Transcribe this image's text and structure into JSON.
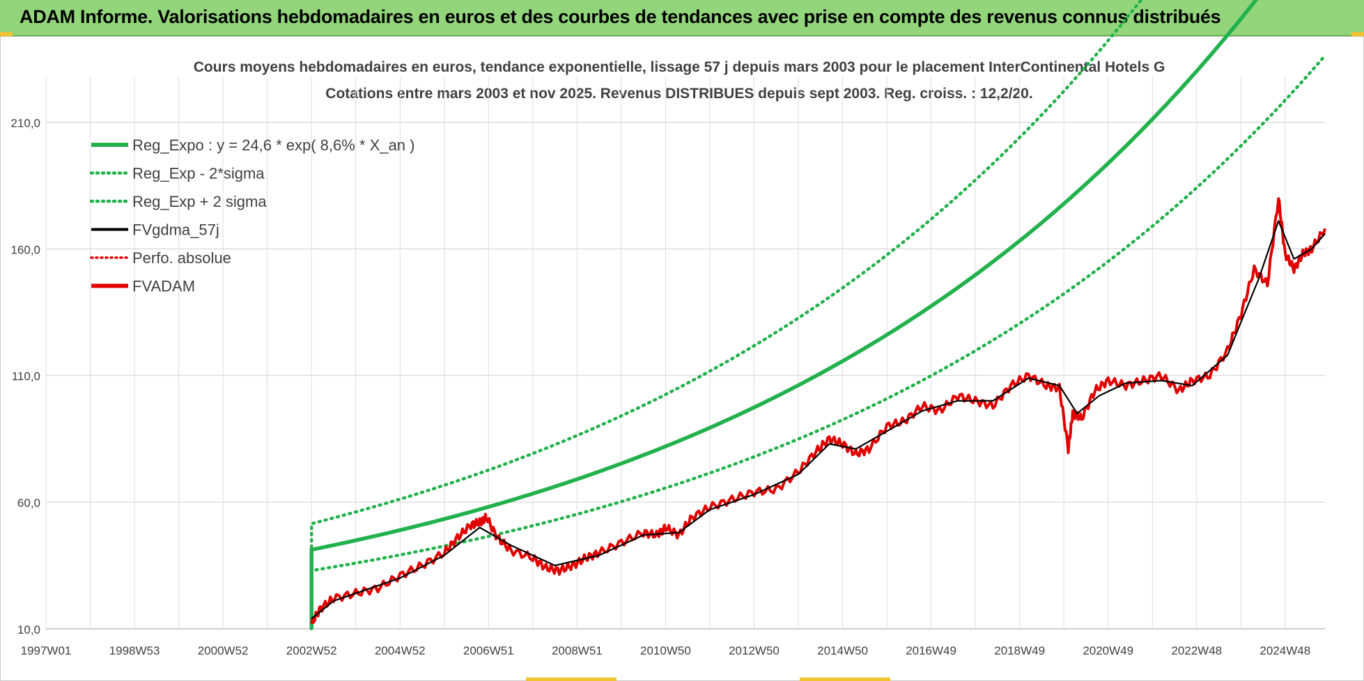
{
  "banner": {
    "title": "ADAM Informe. Valorisations hebdomadaires en euros et des courbes de tendances avec prise en compte des revenus connus distribués"
  },
  "chart_data": {
    "type": "line",
    "title": "Cours moyens hebdomadaires en euros, tendance exponentielle, lissage 57 j depuis mars 2003 pour le placement InterContinental Hotels G",
    "subtitle": "Cotations entre mars 2003 et nov 2025. Revenus DISTRIBUES depuis sept 2003. Reg. croiss. : 12,2/20.",
    "xlabel": "",
    "ylabel": "",
    "grid": true,
    "legend_position": "top-left",
    "ylim": [
      10,
      228
    ],
    "xlim": [
      1997.0,
      2025.9
    ],
    "y_ticks": [
      "210,0",
      "160,0",
      "110,0",
      "60,0",
      "10,0"
    ],
    "y_tick_values": [
      210,
      160,
      110,
      60,
      10
    ],
    "x_tick_labels": [
      "1997W01",
      "1998W53",
      "2000W52",
      "2002W52",
      "2004W52",
      "2006W51",
      "2008W51",
      "2010W50",
      "2012W50",
      "2014W50",
      "2016W49",
      "2018W49",
      "2020W49",
      "2022W48",
      "2024W48"
    ],
    "x_tick_years": [
      1997.0,
      1999.0,
      2001.0,
      2003.0,
      2005.0,
      2007.0,
      2009.0,
      2011.0,
      2013.0,
      2015.0,
      2017.0,
      2019.0,
      2021.0,
      2023.0,
      2025.0
    ],
    "regression": {
      "a": 24.6,
      "rate": 0.086,
      "sigma_factor_low": 0.8,
      "sigma_factor_high": 1.25,
      "start": 2003.0,
      "end": 2025.9
    },
    "series": [
      {
        "name": "Reg_Expo : y = 24,6 * exp( 8,6% *  X_an )",
        "style": "solid-green-thick",
        "color": "#22b14c"
      },
      {
        "name": "Reg_Exp - 2*sigma",
        "style": "dotted-green",
        "color": "#22b14c"
      },
      {
        "name": "Reg_Exp + 2 sigma",
        "style": "dotted-green",
        "color": "#22b14c"
      },
      {
        "name": "FVgdma_57j",
        "style": "solid-black",
        "color": "#000000"
      },
      {
        "name": "Perfo. absolue",
        "style": "dotted-red",
        "color": "#e00000"
      },
      {
        "name": "FVADAM",
        "style": "solid-red-thick",
        "color": "#e00000"
      }
    ],
    "fvadam": {
      "x": [
        2003.0,
        2003.2,
        2003.5,
        2004.0,
        2004.5,
        2005.0,
        2005.5,
        2006.0,
        2006.3,
        2006.6,
        2006.8,
        2006.95,
        2007.2,
        2007.5,
        2008.0,
        2008.3,
        2008.6,
        2008.9,
        2009.2,
        2009.5,
        2010.0,
        2010.5,
        2010.8,
        2011.0,
        2011.3,
        2011.6,
        2012.0,
        2012.5,
        2013.0,
        2013.5,
        2014.0,
        2014.4,
        2014.7,
        2015.0,
        2015.3,
        2015.6,
        2016.0,
        2016.4,
        2016.8,
        2017.2,
        2017.6,
        2018.0,
        2018.4,
        2018.8,
        2019.2,
        2019.6,
        2019.9,
        2020.1,
        2020.2,
        2020.4,
        2020.7,
        2021.0,
        2021.4,
        2021.8,
        2022.2,
        2022.6,
        2022.9,
        2023.3,
        2023.7,
        2024.0,
        2024.3,
        2024.6,
        2024.85,
        2025.0,
        2025.2,
        2025.4,
        2025.6,
        2025.9
      ],
      "y": [
        12,
        18,
        22,
        24,
        26,
        31,
        35,
        40,
        46,
        51,
        52,
        54,
        46,
        41,
        38,
        34,
        33,
        35,
        38,
        40,
        44,
        48,
        47,
        50,
        47,
        54,
        58,
        61,
        64,
        65,
        72,
        80,
        85,
        83,
        79,
        81,
        90,
        92,
        98,
        96,
        102,
        100,
        98,
        106,
        110,
        106,
        105,
        81,
        95,
        93,
        104,
        108,
        106,
        108,
        110,
        104,
        108,
        110,
        120,
        134,
        152,
        146,
        180,
        158,
        152,
        158,
        160,
        168
      ]
    },
    "fvgdma": {
      "x": [
        2003.0,
        2003.5,
        2004.0,
        2005.0,
        2006.0,
        2006.8,
        2007.5,
        2008.5,
        2009.5,
        2010.5,
        2011.3,
        2012.0,
        2013.0,
        2014.0,
        2014.7,
        2015.3,
        2016.0,
        2016.8,
        2017.6,
        2018.4,
        2019.2,
        2019.9,
        2020.3,
        2020.8,
        2021.4,
        2022.2,
        2022.9,
        2023.7,
        2024.0,
        2024.4,
        2024.85,
        2025.2,
        2025.6,
        2025.9
      ],
      "y": [
        14,
        21,
        24,
        30,
        39,
        50,
        43,
        35,
        39,
        47,
        48,
        57,
        63,
        71,
        83,
        81,
        88,
        96,
        100,
        100,
        109,
        106,
        95,
        102,
        107,
        108,
        106,
        118,
        131,
        148,
        171,
        156,
        160,
        166
      ]
    }
  }
}
